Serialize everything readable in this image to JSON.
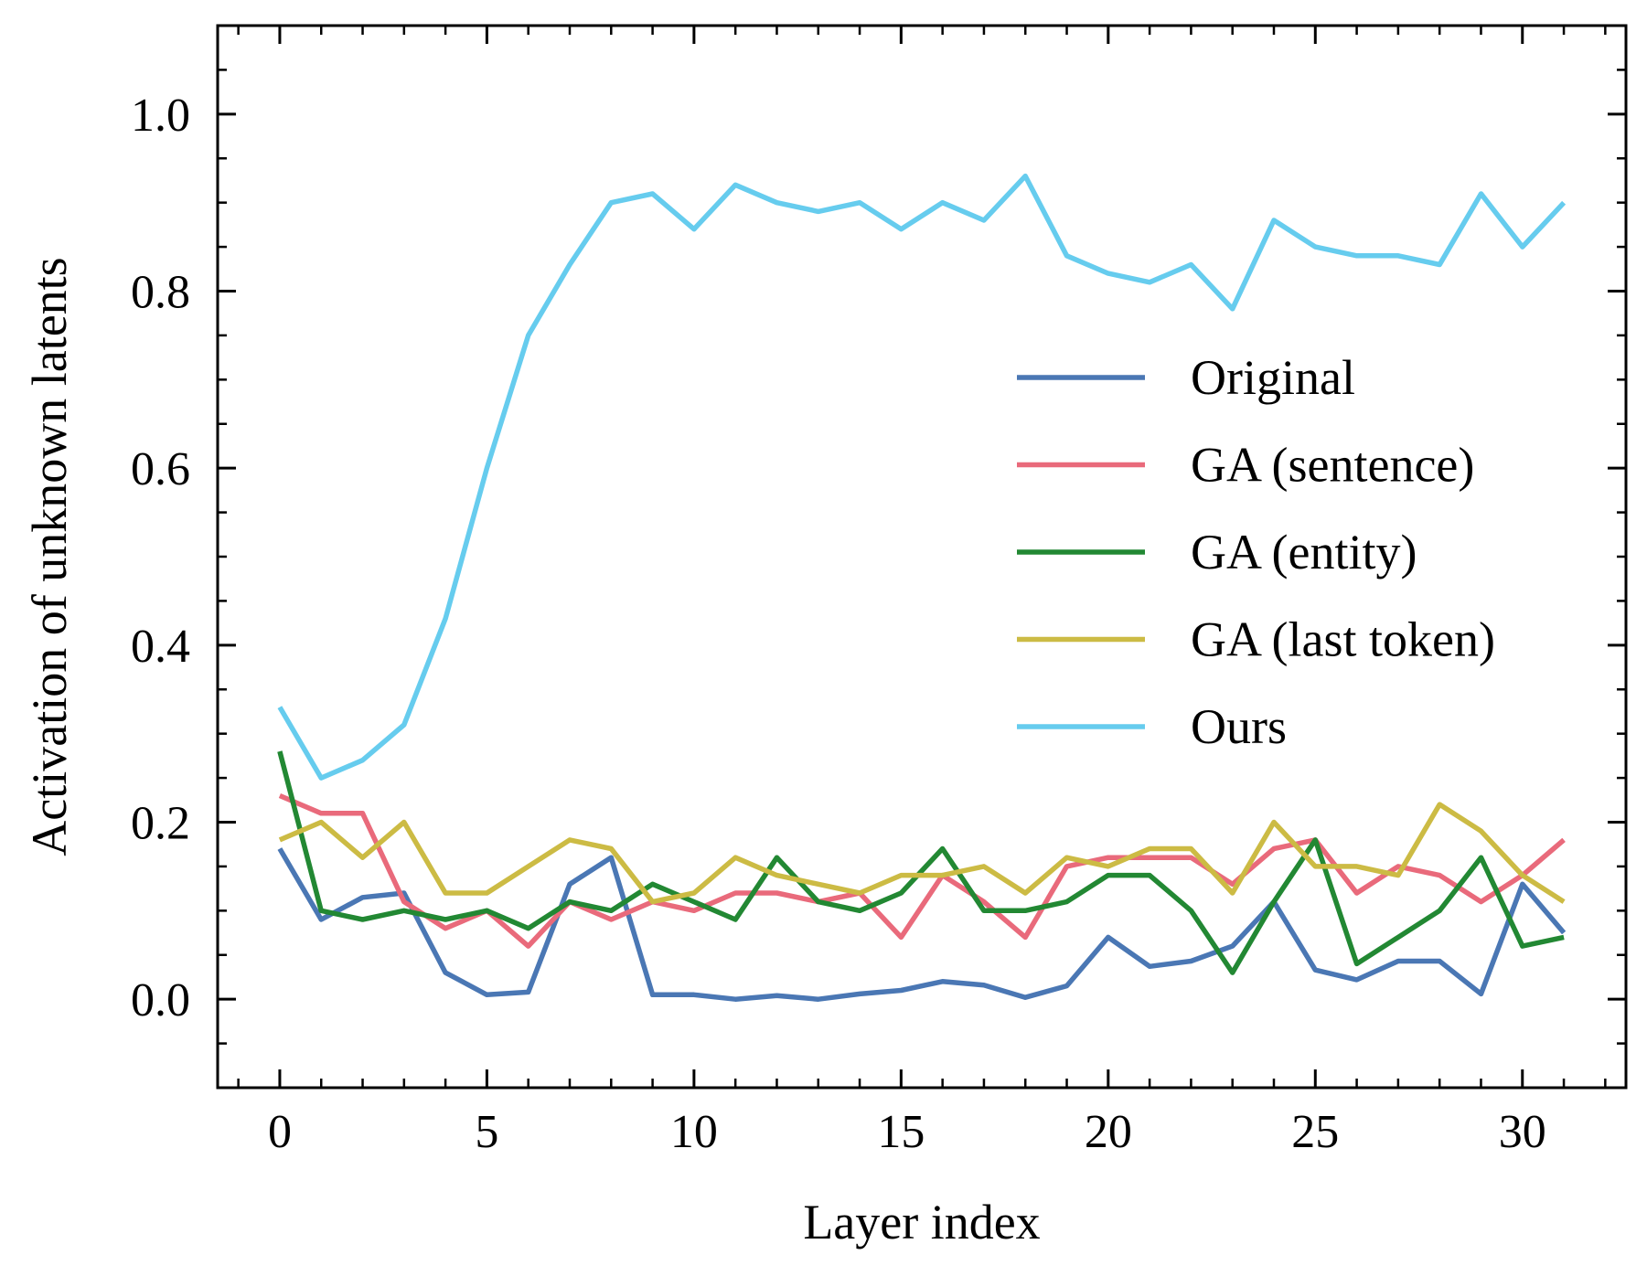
{
  "chart_data": {
    "type": "line",
    "title": "",
    "xlabel": "Layer index",
    "ylabel": "Activation of unknown latents",
    "xlim": [
      -1.5,
      32.5
    ],
    "ylim": [
      -0.1,
      1.1
    ],
    "xticks": [
      0,
      5,
      10,
      15,
      20,
      25,
      30
    ],
    "xtick_labels": [
      "0",
      "5",
      "10",
      "15",
      "20",
      "25",
      "30"
    ],
    "yticks": [
      0.0,
      0.2,
      0.4,
      0.6,
      0.8,
      1.0
    ],
    "ytick_labels": [
      "0.0",
      "0.2",
      "0.4",
      "0.6",
      "0.8",
      "1.0"
    ],
    "x_minor_step": 1,
    "y_minor_step": 0.05,
    "grid": false,
    "legend_position": "center-right",
    "x": [
      0,
      1,
      2,
      3,
      4,
      5,
      6,
      7,
      8,
      9,
      10,
      11,
      12,
      13,
      14,
      15,
      16,
      17,
      18,
      19,
      20,
      21,
      22,
      23,
      24,
      25,
      26,
      27,
      28,
      29,
      30,
      31
    ],
    "series": [
      {
        "name": "Original",
        "color": "#4a77b4",
        "values": [
          0.17,
          0.09,
          0.115,
          0.12,
          0.03,
          0.005,
          0.008,
          0.13,
          0.16,
          0.005,
          0.005,
          0.0,
          0.004,
          0.0,
          0.006,
          0.01,
          0.02,
          0.016,
          0.002,
          0.015,
          0.07,
          0.037,
          0.043,
          0.06,
          0.11,
          0.033,
          0.022,
          0.043,
          0.043,
          0.006,
          0.13,
          0.075
        ]
      },
      {
        "name": "GA (sentence)",
        "color": "#e96a7b",
        "values": [
          0.23,
          0.21,
          0.21,
          0.11,
          0.08,
          0.1,
          0.06,
          0.11,
          0.09,
          0.11,
          0.1,
          0.12,
          0.12,
          0.11,
          0.12,
          0.07,
          0.14,
          0.11,
          0.07,
          0.15,
          0.16,
          0.16,
          0.16,
          0.13,
          0.17,
          0.18,
          0.12,
          0.15,
          0.14,
          0.11,
          0.14,
          0.18
        ]
      },
      {
        "name": "GA (entity)",
        "color": "#228833",
        "values": [
          0.28,
          0.1,
          0.09,
          0.1,
          0.09,
          0.1,
          0.08,
          0.11,
          0.1,
          0.13,
          0.11,
          0.09,
          0.16,
          0.11,
          0.1,
          0.12,
          0.17,
          0.1,
          0.1,
          0.11,
          0.14,
          0.14,
          0.1,
          0.03,
          0.11,
          0.18,
          0.04,
          0.07,
          0.1,
          0.16,
          0.06,
          0.07
        ]
      },
      {
        "name": "GA (last token)",
        "color": "#ccbb44",
        "values": [
          0.18,
          0.2,
          0.16,
          0.2,
          0.12,
          0.12,
          0.15,
          0.18,
          0.17,
          0.11,
          0.12,
          0.16,
          0.14,
          0.13,
          0.12,
          0.14,
          0.14,
          0.15,
          0.12,
          0.16,
          0.15,
          0.17,
          0.17,
          0.12,
          0.2,
          0.15,
          0.15,
          0.14,
          0.22,
          0.19,
          0.14,
          0.11
        ]
      },
      {
        "name": "Ours",
        "color": "#66ccee",
        "values": [
          0.33,
          0.25,
          0.27,
          0.31,
          0.43,
          0.6,
          0.75,
          0.83,
          0.9,
          0.91,
          0.87,
          0.92,
          0.9,
          0.89,
          0.9,
          0.87,
          0.9,
          0.88,
          0.93,
          0.84,
          0.82,
          0.81,
          0.83,
          0.78,
          0.88,
          0.85,
          0.84,
          0.84,
          0.83,
          0.91,
          0.85,
          0.9
        ]
      }
    ]
  }
}
